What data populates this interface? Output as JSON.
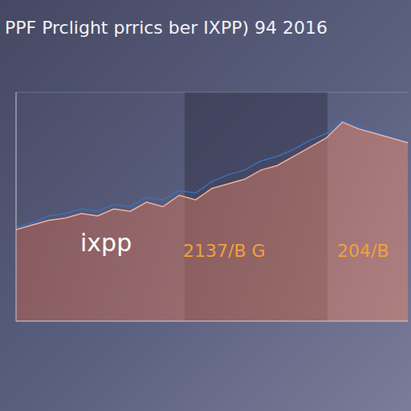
{
  "chart_data": {
    "type": "area",
    "title": "PPF Prclight prrics ber IXPP) 94 2016",
    "x": [
      0,
      1,
      2,
      3,
      4,
      5,
      6,
      7,
      8,
      9,
      10,
      11,
      12,
      13,
      14,
      15,
      16,
      17,
      18,
      19,
      20,
      21,
      22,
      23,
      24
    ],
    "series": [
      {
        "type": "area",
        "color": "#c46a58",
        "values": [
          40,
          42,
          44,
          45,
          47,
          46,
          49,
          48,
          52,
          50,
          55,
          53,
          58,
          60,
          62,
          66,
          68,
          72,
          76,
          80,
          87,
          84,
          82,
          80,
          78
        ]
      },
      {
        "type": "line",
        "color": "#3d6fb8",
        "values": [
          41,
          43,
          46,
          47,
          49,
          48,
          51,
          50,
          54,
          53,
          57,
          56,
          61,
          64,
          66,
          70,
          72,
          75,
          79,
          82,
          88,
          85,
          83,
          81,
          79
        ]
      }
    ],
    "xlim": [
      0,
      24
    ],
    "ylim": [
      0,
      100
    ],
    "yticks": [
      0,
      20,
      40,
      60,
      80,
      100
    ],
    "grid": true,
    "tick_labels": false,
    "annotations": [
      "ixpp",
      "2137/B G",
      "204/B"
    ]
  }
}
